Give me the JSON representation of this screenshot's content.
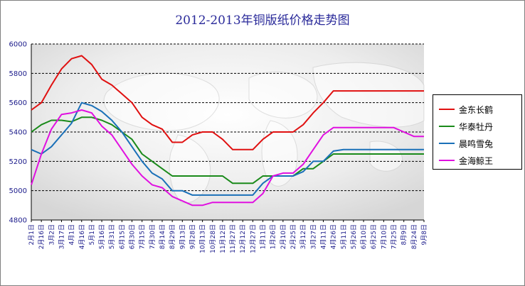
{
  "chart_data": {
    "type": "line",
    "title": "2012-2013年铜版纸价格走势图",
    "xlabel": "",
    "ylabel": "",
    "ylim": [
      4800,
      6000
    ],
    "yticks": [
      4800,
      5000,
      5200,
      5400,
      5600,
      5800,
      6000
    ],
    "grid": true,
    "legend_position": "right",
    "categories": [
      "2月1日",
      "2月16日",
      "3月2日",
      "3月17日",
      "4月1日",
      "4月16日",
      "5月1日",
      "5月16日",
      "5月31日",
      "6月15日",
      "6月30日",
      "7月15日",
      "7月30日",
      "8月14日",
      "8月29日",
      "9月13日",
      "9月28日",
      "10月13日",
      "10月28日",
      "11月12日",
      "11月27日",
      "12月12日",
      "12月27日",
      "1月11日",
      "1月26日",
      "2月10日",
      "2月25日",
      "3月12日",
      "3月27日",
      "4月11日",
      "4月26日",
      "5月11日",
      "5月26日",
      "6月10日",
      "6月25日",
      "7月10日",
      "7月25日",
      "8月9日",
      "8月24日",
      "9月8日"
    ],
    "series": [
      {
        "name": "金东长鹤",
        "color": "#e01010",
        "values": [
          5550,
          5600,
          5720,
          5830,
          5900,
          5920,
          5860,
          5760,
          5720,
          5660,
          5600,
          5500,
          5450,
          5420,
          5330,
          5330,
          5380,
          5400,
          5400,
          5350,
          5280,
          5280,
          5280,
          5350,
          5400,
          5400,
          5400,
          5450,
          5530,
          5600,
          5680,
          5680,
          5680,
          5680,
          5680,
          5680,
          5680,
          5680,
          5680,
          5680
        ]
      },
      {
        "name": "华泰牡丹",
        "color": "#1a8a1a",
        "values": [
          5400,
          5450,
          5480,
          5480,
          5470,
          5500,
          5500,
          5480,
          5450,
          5400,
          5350,
          5250,
          5200,
          5150,
          5100,
          5100,
          5100,
          5100,
          5100,
          5100,
          5050,
          5050,
          5050,
          5100,
          5100,
          5100,
          5100,
          5150,
          5150,
          5200,
          5250,
          5250,
          5250,
          5250,
          5250,
          5250,
          5250,
          5250,
          5250,
          5250
        ]
      },
      {
        "name": "晨鸣雪兔",
        "color": "#1a70b8",
        "values": [
          5280,
          5250,
          5300,
          5380,
          5460,
          5600,
          5580,
          5540,
          5480,
          5400,
          5300,
          5200,
          5120,
          5080,
          5000,
          5000,
          4970,
          4970,
          4970,
          4970,
          4970,
          4970,
          4970,
          5050,
          5100,
          5100,
          5100,
          5130,
          5200,
          5200,
          5270,
          5280,
          5280,
          5280,
          5280,
          5280,
          5280,
          5280,
          5280,
          5280
        ]
      },
      {
        "name": "金海鲸王",
        "color": "#e010e0",
        "values": [
          5040,
          5250,
          5420,
          5520,
          5530,
          5550,
          5530,
          5440,
          5380,
          5280,
          5180,
          5100,
          5040,
          5020,
          4960,
          4930,
          4900,
          4900,
          4920,
          4920,
          4920,
          4920,
          4920,
          4980,
          5100,
          5120,
          5120,
          5180,
          5280,
          5380,
          5430,
          5430,
          5430,
          5430,
          5430,
          5430,
          5430,
          5400,
          5370,
          5370
        ]
      }
    ]
  }
}
